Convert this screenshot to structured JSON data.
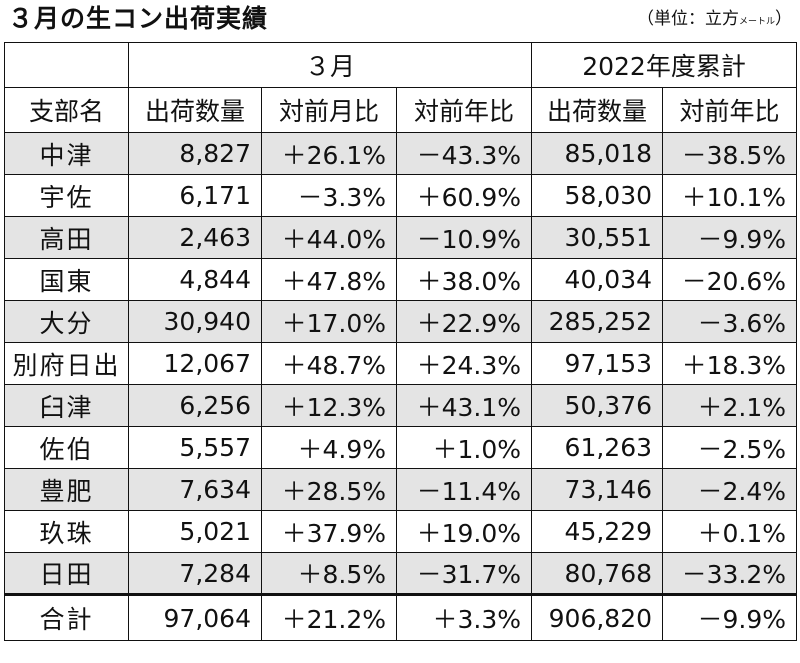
{
  "title": "３月の生コン出荷実績",
  "unit_label": "（単位：立方",
  "unit_label_small": "メートル",
  "unit_close": "）",
  "groups": [
    "３月",
    "2022年度累計"
  ],
  "columns": [
    "支部名",
    "出荷数量",
    "対前月比",
    "対前年比",
    "出荷数量",
    "対前年比"
  ],
  "rows": [
    {
      "branch": "中津",
      "volume": "8,827",
      "mom": "＋26.1%",
      "yoy": "－43.3%",
      "cum_volume": "85,018",
      "cum_yoy": "－38.5%"
    },
    {
      "branch": "宇佐",
      "volume": "6,171",
      "mom": "－3.3%",
      "yoy": "＋60.9%",
      "cum_volume": "58,030",
      "cum_yoy": "＋10.1%"
    },
    {
      "branch": "高田",
      "volume": "2,463",
      "mom": "＋44.0%",
      "yoy": "－10.9%",
      "cum_volume": "30,551",
      "cum_yoy": "－9.9%"
    },
    {
      "branch": "国東",
      "volume": "4,844",
      "mom": "＋47.8%",
      "yoy": "＋38.0%",
      "cum_volume": "40,034",
      "cum_yoy": "－20.6%"
    },
    {
      "branch": "大分",
      "volume": "30,940",
      "mom": "＋17.0%",
      "yoy": "＋22.9%",
      "cum_volume": "285,252",
      "cum_yoy": "－3.6%"
    },
    {
      "branch": "別府日出",
      "volume": "12,067",
      "mom": "＋48.7%",
      "yoy": "＋24.3%",
      "cum_volume": "97,153",
      "cum_yoy": "＋18.3%"
    },
    {
      "branch": "臼津",
      "volume": "6,256",
      "mom": "＋12.3%",
      "yoy": "＋43.1%",
      "cum_volume": "50,376",
      "cum_yoy": "＋2.1%"
    },
    {
      "branch": "佐伯",
      "volume": "5,557",
      "mom": "＋4.9%",
      "yoy": "＋1.0%",
      "cum_volume": "61,263",
      "cum_yoy": "－2.5%"
    },
    {
      "branch": "豊肥",
      "volume": "7,634",
      "mom": "＋28.5%",
      "yoy": "－11.4%",
      "cum_volume": "73,146",
      "cum_yoy": "－2.4%"
    },
    {
      "branch": "玖珠",
      "volume": "5,021",
      "mom": "＋37.9%",
      "yoy": "＋19.0%",
      "cum_volume": "45,229",
      "cum_yoy": "＋0.1%"
    },
    {
      "branch": "日田",
      "volume": "7,284",
      "mom": "＋8.5%",
      "yoy": "－31.7%",
      "cum_volume": "80,768",
      "cum_yoy": "－33.2%"
    }
  ],
  "total": {
    "branch": "合計",
    "volume": "97,064",
    "mom": "＋21.2%",
    "yoy": "＋3.3%",
    "cum_volume": "906,820",
    "cum_yoy": "－9.9%"
  }
}
